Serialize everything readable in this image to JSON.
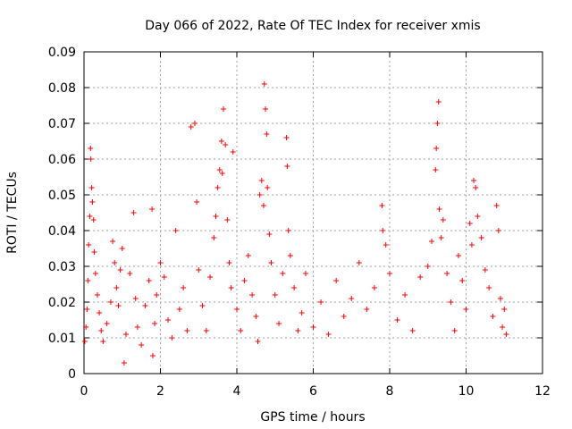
{
  "chart_data": {
    "type": "scatter",
    "title": "Day 066 of 2022, Rate Of TEC Index for receiver xmis",
    "xlabel": "GPS time / hours",
    "ylabel": "ROTI / TECUs",
    "xlim": [
      0,
      12
    ],
    "ylim": [
      0,
      0.09
    ],
    "xticks": [
      "0",
      "2",
      "4",
      "6",
      "8",
      "10",
      "12"
    ],
    "yticks": [
      "0",
      "0.01",
      "0.02",
      "0.03",
      "0.04",
      "0.05",
      "0.06",
      "0.07",
      "0.08",
      "0.09"
    ],
    "grid": true,
    "marker": "+",
    "color": "#ff0000",
    "series": [
      {
        "points": [
          [
            0.02,
            0.009
          ],
          [
            0.05,
            0.013
          ],
          [
            0.08,
            0.018
          ],
          [
            0.1,
            0.026
          ],
          [
            0.12,
            0.036
          ],
          [
            0.15,
            0.044
          ],
          [
            0.17,
            0.063
          ],
          [
            0.18,
            0.06
          ],
          [
            0.2,
            0.052
          ],
          [
            0.22,
            0.048
          ],
          [
            0.25,
            0.043
          ],
          [
            0.27,
            0.034
          ],
          [
            0.3,
            0.028
          ],
          [
            0.35,
            0.022
          ],
          [
            0.4,
            0.017
          ],
          [
            0.45,
            0.012
          ],
          [
            0.5,
            0.009
          ],
          [
            0.6,
            0.014
          ],
          [
            0.7,
            0.02
          ],
          [
            0.75,
            0.037
          ],
          [
            0.8,
            0.031
          ],
          [
            0.85,
            0.024
          ],
          [
            0.9,
            0.019
          ],
          [
            0.95,
            0.029
          ],
          [
            1.0,
            0.035
          ],
          [
            1.05,
            0.003
          ],
          [
            1.1,
            0.011
          ],
          [
            1.2,
            0.028
          ],
          [
            1.3,
            0.045
          ],
          [
            1.35,
            0.021
          ],
          [
            1.4,
            0.013
          ],
          [
            1.5,
            0.008
          ],
          [
            1.6,
            0.019
          ],
          [
            1.7,
            0.026
          ],
          [
            1.78,
            0.046
          ],
          [
            1.8,
            0.005
          ],
          [
            1.85,
            0.014
          ],
          [
            1.9,
            0.022
          ],
          [
            2.0,
            0.031
          ],
          [
            2.1,
            0.027
          ],
          [
            2.2,
            0.015
          ],
          [
            2.3,
            0.01
          ],
          [
            2.4,
            0.04
          ],
          [
            2.5,
            0.018
          ],
          [
            2.6,
            0.024
          ],
          [
            2.7,
            0.012
          ],
          [
            2.8,
            0.069
          ],
          [
            2.9,
            0.07
          ],
          [
            2.95,
            0.048
          ],
          [
            3.0,
            0.029
          ],
          [
            3.1,
            0.019
          ],
          [
            3.2,
            0.012
          ],
          [
            3.3,
            0.027
          ],
          [
            3.4,
            0.038
          ],
          [
            3.45,
            0.044
          ],
          [
            3.5,
            0.052
          ],
          [
            3.55,
            0.057
          ],
          [
            3.6,
            0.065
          ],
          [
            3.62,
            0.056
          ],
          [
            3.65,
            0.074
          ],
          [
            3.7,
            0.064
          ],
          [
            3.75,
            0.043
          ],
          [
            3.8,
            0.031
          ],
          [
            3.85,
            0.024
          ],
          [
            3.9,
            0.062
          ],
          [
            4.0,
            0.018
          ],
          [
            4.1,
            0.012
          ],
          [
            4.2,
            0.026
          ],
          [
            4.3,
            0.033
          ],
          [
            4.4,
            0.022
          ],
          [
            4.5,
            0.016
          ],
          [
            4.55,
            0.009
          ],
          [
            4.6,
            0.05
          ],
          [
            4.65,
            0.054
          ],
          [
            4.7,
            0.047
          ],
          [
            4.72,
            0.081
          ],
          [
            4.75,
            0.074
          ],
          [
            4.78,
            0.067
          ],
          [
            4.8,
            0.052
          ],
          [
            4.85,
            0.039
          ],
          [
            4.9,
            0.031
          ],
          [
            5.0,
            0.022
          ],
          [
            5.1,
            0.014
          ],
          [
            5.2,
            0.028
          ],
          [
            5.3,
            0.066
          ],
          [
            5.32,
            0.058
          ],
          [
            5.35,
            0.04
          ],
          [
            5.4,
            0.033
          ],
          [
            5.5,
            0.024
          ],
          [
            5.6,
            0.012
          ],
          [
            5.7,
            0.017
          ],
          [
            5.8,
            0.028
          ],
          [
            6.0,
            0.013
          ],
          [
            6.2,
            0.02
          ],
          [
            6.4,
            0.011
          ],
          [
            6.6,
            0.026
          ],
          [
            6.8,
            0.016
          ],
          [
            7.0,
            0.021
          ],
          [
            7.2,
            0.031
          ],
          [
            7.4,
            0.018
          ],
          [
            7.6,
            0.024
          ],
          [
            7.8,
            0.047
          ],
          [
            7.82,
            0.04
          ],
          [
            7.9,
            0.036
          ],
          [
            8.0,
            0.028
          ],
          [
            8.2,
            0.015
          ],
          [
            8.4,
            0.022
          ],
          [
            8.6,
            0.012
          ],
          [
            8.8,
            0.027
          ],
          [
            9.0,
            0.03
          ],
          [
            9.1,
            0.037
          ],
          [
            9.2,
            0.057
          ],
          [
            9.22,
            0.063
          ],
          [
            9.25,
            0.07
          ],
          [
            9.28,
            0.076
          ],
          [
            9.3,
            0.046
          ],
          [
            9.35,
            0.038
          ],
          [
            9.4,
            0.043
          ],
          [
            9.5,
            0.028
          ],
          [
            9.6,
            0.02
          ],
          [
            9.7,
            0.012
          ],
          [
            9.8,
            0.033
          ],
          [
            9.9,
            0.026
          ],
          [
            10.0,
            0.018
          ],
          [
            10.1,
            0.042
          ],
          [
            10.15,
            0.036
          ],
          [
            10.2,
            0.054
          ],
          [
            10.25,
            0.052
          ],
          [
            10.3,
            0.044
          ],
          [
            10.4,
            0.038
          ],
          [
            10.5,
            0.029
          ],
          [
            10.6,
            0.024
          ],
          [
            10.7,
            0.016
          ],
          [
            10.8,
            0.047
          ],
          [
            10.85,
            0.04
          ],
          [
            10.9,
            0.021
          ],
          [
            10.95,
            0.013
          ],
          [
            11.0,
            0.018
          ],
          [
            11.05,
            0.011
          ]
        ]
      }
    ]
  }
}
